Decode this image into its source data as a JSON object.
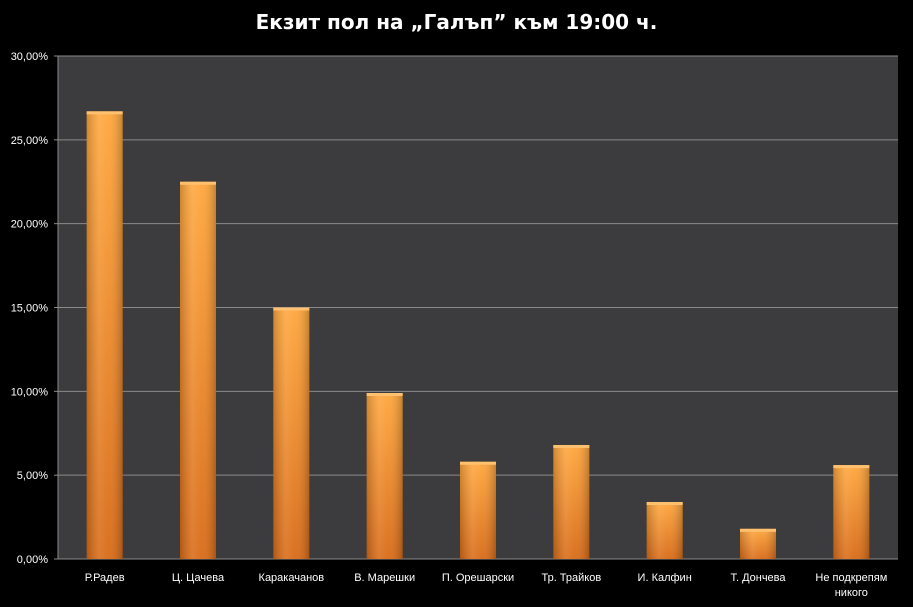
{
  "chart_data": {
    "type": "bar",
    "title": "Екзит пол на „Галъп” към 19:00 ч.",
    "xlabel": "",
    "ylabel": "",
    "ylim": [
      0,
      30
    ],
    "yticks": [
      "0,00%",
      "5,00%",
      "10,00%",
      "15,00%",
      "20,00%",
      "25,00%",
      "30,00%"
    ],
    "ytick_values": [
      0,
      5,
      10,
      15,
      20,
      25,
      30
    ],
    "grid": true,
    "legend": "none",
    "categories": [
      "Р.Радев",
      "Ц. Цачева",
      "Каракачанов",
      "В. Марешки",
      "П. Орешарски",
      "Тр. Трайков",
      "И. Калфин",
      "Т. Дончева",
      "Не подкрепям никого"
    ],
    "category_lines": [
      [
        "Р.Радев"
      ],
      [
        "Ц. Цачева"
      ],
      [
        "Каракачанов"
      ],
      [
        "В. Марешки"
      ],
      [
        "П. Орешарски"
      ],
      [
        "Тр. Трайков"
      ],
      [
        "И. Калфин"
      ],
      [
        "Т. Дончева"
      ],
      [
        "Не подкрепям",
        "никого"
      ]
    ],
    "values": [
      26.7,
      22.5,
      15.0,
      9.9,
      5.8,
      6.8,
      3.4,
      1.8,
      5.6
    ],
    "colors": {
      "background": "#000000",
      "plot_area": "#3c3b3d",
      "gridline": "#8a8a8a",
      "bar_light": "#ffa63c",
      "bar_dark": "#d86a16",
      "text": "#ffffff"
    }
  }
}
